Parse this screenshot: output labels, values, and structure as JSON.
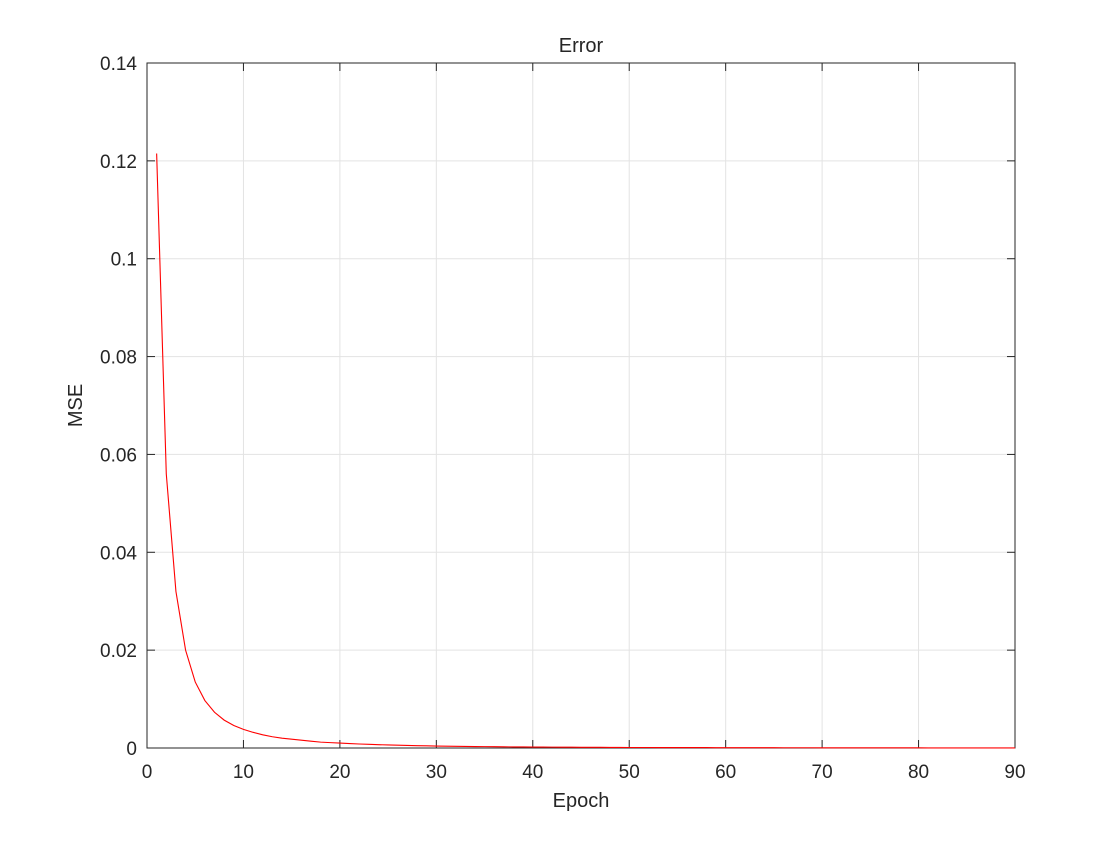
{
  "chart_data": {
    "type": "line",
    "title": "Error",
    "xlabel": "Epoch",
    "ylabel": "MSE",
    "xlim": [
      0,
      90
    ],
    "ylim": [
      0,
      0.14
    ],
    "xticks": [
      0,
      10,
      20,
      30,
      40,
      50,
      60,
      70,
      80,
      90
    ],
    "yticks": [
      0,
      0.02,
      0.04,
      0.06,
      0.08,
      0.1,
      0.12,
      0.14
    ],
    "xtick_labels": [
      "0",
      "10",
      "20",
      "30",
      "40",
      "50",
      "60",
      "70",
      "80",
      "90"
    ],
    "ytick_labels": [
      "0",
      "0.02",
      "0.04",
      "0.06",
      "0.08",
      "0.1",
      "0.12",
      "0.14"
    ],
    "grid": true,
    "line_color": "#ff0000",
    "series": [
      {
        "x": [
          1,
          2,
          3,
          4,
          5,
          6,
          7,
          8,
          9,
          10,
          11,
          12,
          13,
          14,
          15,
          16,
          17,
          18,
          19,
          20,
          21,
          22,
          23,
          24,
          25,
          26,
          27,
          28,
          29,
          30,
          31,
          32,
          33,
          34,
          35,
          36,
          37,
          38,
          39,
          40,
          41,
          42,
          43,
          44,
          45,
          46,
          47,
          48,
          49,
          50,
          51,
          52,
          53,
          54,
          55,
          56,
          57,
          58,
          59,
          60,
          61,
          62,
          63,
          64,
          65,
          66,
          67,
          68,
          69,
          70,
          71,
          72,
          73,
          74,
          75,
          76,
          77,
          78,
          79,
          80,
          81,
          82,
          83,
          84,
          85,
          86,
          87,
          88,
          89,
          90
        ],
        "y": [
          0.1215,
          0.056,
          0.032,
          0.02,
          0.0135,
          0.0097,
          0.0073,
          0.0057,
          0.0046,
          0.0038,
          0.0032,
          0.0027,
          0.0023,
          0.002,
          0.0018,
          0.0016,
          0.0014,
          0.0012,
          0.0011,
          0.001,
          0.0009,
          0.00082,
          0.00075,
          0.00068,
          0.00062,
          0.00057,
          0.00052,
          0.00048,
          0.00044,
          0.0004,
          0.00037,
          0.00034,
          0.00032,
          0.0003,
          0.00028,
          0.00026,
          0.00024,
          0.00022,
          0.00021,
          0.0002,
          0.00019,
          0.00018,
          0.00017,
          0.00016,
          0.00015,
          0.00014,
          0.00013,
          0.00012,
          0.00011,
          0.0001,
          0.0001,
          0.0001,
          9e-05,
          9e-05,
          9e-05,
          8e-05,
          8e-05,
          8e-05,
          7e-05,
          7e-05,
          7e-05,
          6e-05,
          6e-05,
          6e-05,
          6e-05,
          5e-05,
          5e-05,
          5e-05,
          5e-05,
          4e-05,
          4e-05,
          4e-05,
          4e-05,
          4e-05,
          3e-05,
          3e-05,
          3e-05,
          3e-05,
          3e-05,
          3e-05,
          2e-05,
          2e-05,
          2e-05,
          2e-05,
          2e-05,
          2e-05,
          2e-05,
          2e-05,
          2e-05,
          2e-05
        ]
      }
    ]
  }
}
